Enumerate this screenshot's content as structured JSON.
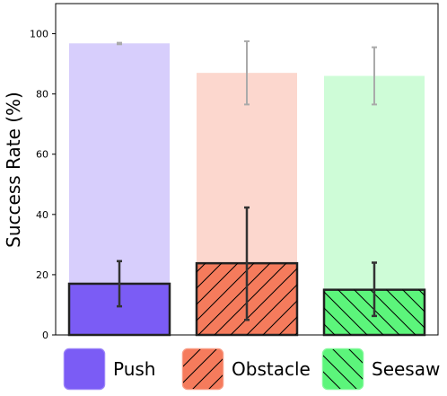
{
  "chart_data": {
    "type": "bar",
    "title": "",
    "xlabel": "",
    "ylabel": "Success Rate (%)",
    "ylim": [
      0,
      110
    ],
    "yticks": [
      0,
      20,
      40,
      60,
      80,
      100
    ],
    "categories": [
      "Push",
      "Obstacle",
      "Seesaw"
    ],
    "colors": {
      "Push": "#7b5cf5",
      "Obstacle": "#f57b5c",
      "Seesaw": "#5cf57b"
    },
    "hatches": {
      "Push": "none",
      "Obstacle": "forward-diagonal",
      "Seesaw": "back-diagonal"
    },
    "series": [
      {
        "style": "light-background",
        "values": [
          96.8,
          87.0,
          86.0
        ],
        "error": [
          [
            96.5,
            97.0
          ],
          [
            76.5,
            97.5
          ],
          [
            76.5,
            95.5
          ]
        ]
      },
      {
        "style": "foreground",
        "values": [
          17.0,
          23.8,
          15.0
        ],
        "error": [
          [
            9.5,
            24.5
          ],
          [
            5.0,
            42.3
          ],
          [
            6.3,
            24.0
          ]
        ]
      }
    ],
    "legend": {
      "placement": "bottom",
      "entries": [
        "Push",
        "Obstacle",
        "Seesaw"
      ]
    },
    "grid": false
  }
}
